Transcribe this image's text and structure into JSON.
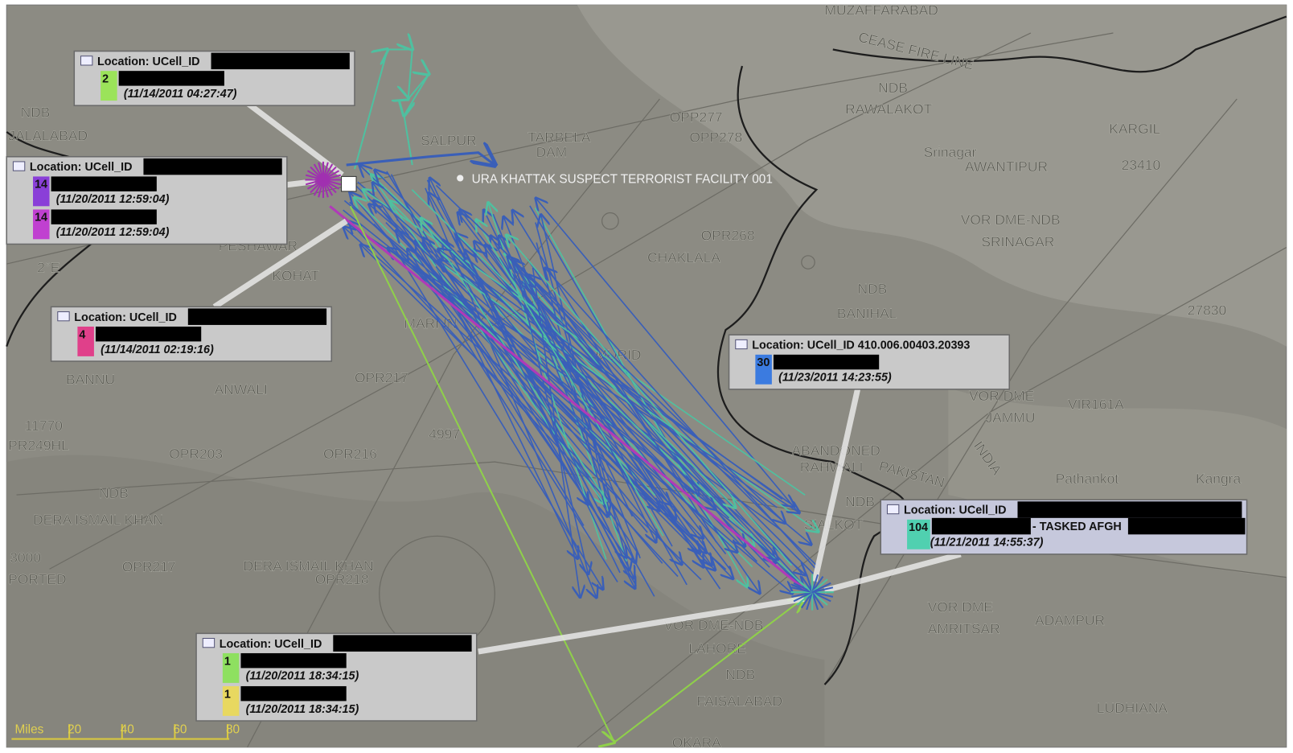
{
  "map": {
    "labels": [
      "MUZAFFARABAD",
      "CEASE FIRE LINE",
      "NDB",
      "RAWALAKOT",
      "KARGIL",
      "23410",
      "OPP277",
      "OPP278",
      "TARBELA",
      "DAM",
      "SALPUR",
      "Srinagar",
      "AWANTIPUR",
      "VOR DME-NDB",
      "SRINAGAR",
      "OPR268",
      "CHAKLALA",
      "NDB",
      "BANIHAL",
      "27830",
      "NDB",
      "JALALABAD",
      "PESHAWAR",
      "KOHAT",
      "2°E",
      "BANNU",
      "ANWALI",
      "OPR217",
      "11770",
      "PR249HL",
      "OPR203",
      "OPR216",
      "4997",
      "NDB",
      "DERA ISMAIL KHAN",
      "3000",
      "PORTED",
      "OPR217",
      "DERA ISMAIL KHAN",
      "OPR218",
      "MARI IN",
      "MURID",
      "VOR DME",
      "JAMMU",
      "VIR161A",
      "ABANDONED",
      "RAHWALI",
      "PAKISTAN",
      "NDB",
      "SIALKOT",
      "VOR DME",
      "AMRITSAR",
      "ADAMPUR",
      "VOR DME-NDB",
      "LAHORE",
      "NDB",
      "FAISALABAD",
      "LUDHIANA",
      "OKARA",
      "Pathankot",
      "Kangra",
      "INDIA"
    ]
  },
  "facility": "URA KHATTAK SUSPECT TERRORIST FACILITY 001",
  "callouts": [
    {
      "location": "Location: UCell_ID",
      "entries": [
        {
          "count": 2,
          "time": "(11/14/2011 04:27:47)"
        }
      ]
    },
    {
      "location": "Location: UCell_ID",
      "entries": [
        {
          "count": 14,
          "time": "(11/20/2011 12:59:04)"
        },
        {
          "count": 14,
          "time": "(11/20/2011 12:59:04)"
        }
      ]
    },
    {
      "location": "Location: UCell_ID",
      "entries": [
        {
          "count": 4,
          "time": "(11/14/2011 02:19:16)"
        }
      ]
    },
    {
      "location": "Location: UCell_ID 410.006.00403.20393",
      "entries": [
        {
          "count": 30,
          "time": "(11/23/2011 14:23:55)"
        }
      ]
    },
    {
      "location": "Location: UCell_ID",
      "entries": [
        {
          "count": 104,
          "note": "- TASKED AFGH",
          "time": "(11/21/2011 14:55:37)"
        }
      ]
    },
    {
      "location": "Location: UCell_ID",
      "entries": [
        {
          "count": 1,
          "time": "(11/20/2011 18:34:15)"
        },
        {
          "count": 1,
          "time": "(11/20/2011 18:34:15)"
        }
      ]
    }
  ],
  "scale": {
    "unit": "Miles",
    "ticks": [
      20,
      40,
      60,
      80
    ]
  }
}
